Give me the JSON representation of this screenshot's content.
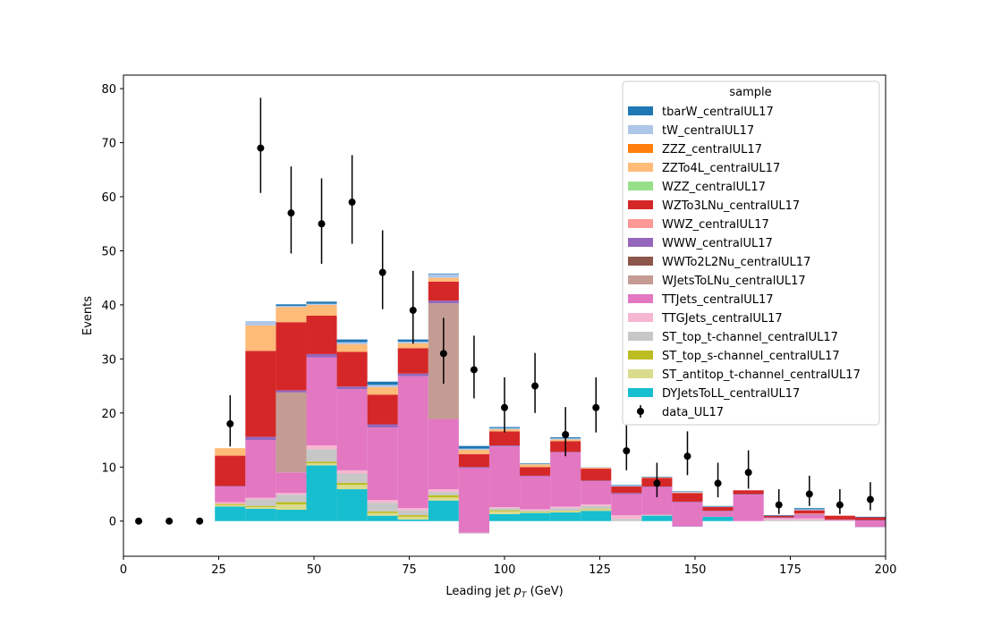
{
  "chart_data": {
    "type": "bar",
    "stacked": true,
    "xlabel": "Leading jet  p_T (GeV)",
    "xlabel_main": "Leading jet",
    "xlabel_p": "p",
    "xlabel_sub": "T",
    "xlabel_unit": "(GeV)",
    "ylabel": "Events",
    "xlim": [
      0,
      200
    ],
    "ylim": [
      -6.5,
      82.5
    ],
    "xticks": [
      0,
      25,
      50,
      75,
      100,
      125,
      150,
      175,
      200
    ],
    "yticks": [
      0,
      10,
      20,
      30,
      40,
      50,
      60,
      70,
      80
    ],
    "bin_edges": [
      0,
      8,
      16,
      24,
      32,
      40,
      48,
      56,
      64,
      72,
      80,
      88,
      96,
      104,
      112,
      120,
      128,
      136,
      144,
      152,
      160,
      168,
      176,
      184,
      192,
      200
    ],
    "legend": {
      "title": "sample",
      "position": "top-right"
    },
    "series": [
      {
        "name": "DYJetsToLL_centralUL17",
        "color": "#17becf",
        "values": [
          0,
          0,
          0,
          2.7,
          2.3,
          2.1,
          10.3,
          5.9,
          1.0,
          0.3,
          3.8,
          -2.3,
          1.3,
          1.5,
          1.6,
          1.9,
          0.0,
          1.0,
          -1.0,
          0.8,
          0.0,
          0.0,
          0.0,
          0.0,
          -1.1
        ]
      },
      {
        "name": "ST_antitop_t-channel_centralUL17",
        "color": "#dbdb8d",
        "values": [
          0,
          0,
          0,
          0.3,
          0.3,
          1.0,
          0.4,
          0.8,
          0.5,
          0.5,
          0.6,
          0,
          0.5,
          0.2,
          0.2,
          0.3,
          0,
          0,
          0,
          0,
          0,
          0,
          0,
          0,
          0
        ]
      },
      {
        "name": "ST_top_s-channel_centralUL17",
        "color": "#bcbd22",
        "values": [
          0,
          0,
          0,
          0.2,
          0.2,
          0.4,
          0.3,
          0.4,
          0.3,
          0.3,
          0.4,
          0,
          0.2,
          0.1,
          0.1,
          0.1,
          0,
          0,
          0,
          0,
          0,
          0,
          0,
          0,
          0
        ]
      },
      {
        "name": "ST_top_t-channel_centralUL17",
        "color": "#c7c7c7",
        "values": [
          0,
          0,
          0,
          0,
          1.2,
          1.4,
          2.3,
          1.7,
          1.6,
          0.9,
          0.6,
          0,
          0.4,
          0.2,
          0.5,
          0.5,
          0.4,
          0.2,
          0,
          0,
          0,
          0.2,
          0.2,
          0,
          0
        ]
      },
      {
        "name": "TTGJets_centralUL17",
        "color": "#f7b6d2",
        "values": [
          0,
          0,
          0,
          0.3,
          0.3,
          0.3,
          0.7,
          0.6,
          0.5,
          0.4,
          0.5,
          0.2,
          0.2,
          0.2,
          0.3,
          0.3,
          0.7,
          0,
          0,
          0,
          0,
          0.3,
          0.3,
          0.2,
          0
        ]
      },
      {
        "name": "TTJets_centralUL17",
        "color": "#e377c2",
        "values": [
          0,
          0,
          0,
          2.9,
          10.7,
          3.8,
          16.3,
          15.0,
          13.4,
          24.4,
          13.0,
          11.9,
          11.2,
          6.1,
          10.0,
          4.3,
          3.9,
          5.1,
          4.5,
          1.0,
          4.9,
          0.1,
          0.6,
          0,
          1.2
        ]
      },
      {
        "name": "WJetsToLNu_centralUL17",
        "color": "#c49c94",
        "values": [
          0,
          0,
          0,
          0,
          0,
          14.8,
          0,
          0,
          0,
          0,
          21.4,
          0,
          0,
          0,
          0,
          0,
          0,
          0,
          0,
          0,
          0,
          0,
          0,
          0,
          0
        ]
      },
      {
        "name": "WWTo2L2Nu_centralUL17",
        "color": "#8c564b",
        "values": [
          0,
          0,
          0,
          0,
          0,
          0,
          0,
          0,
          0,
          0,
          0,
          0,
          0,
          0,
          0,
          0,
          0,
          0,
          0,
          0,
          0,
          0,
          0,
          0,
          0
        ]
      },
      {
        "name": "WWW_centralUL17",
        "color": "#9467bd",
        "values": [
          0,
          0,
          0,
          0.1,
          0.6,
          0.4,
          0.6,
          0.5,
          0.6,
          0.5,
          0.5,
          0.2,
          0.2,
          0.1,
          0.1,
          0.1,
          0.2,
          0.1,
          0.1,
          0.1,
          0.1,
          0.1,
          0.1,
          0.1,
          0.1
        ]
      },
      {
        "name": "WWZ_centralUL17",
        "color": "#ff9896",
        "values": [
          0,
          0,
          0,
          0,
          0,
          0,
          0,
          0,
          0,
          0,
          0,
          0,
          0,
          0,
          0,
          0,
          0,
          0,
          0,
          0,
          0,
          0,
          0.2,
          0,
          0
        ]
      },
      {
        "name": "WZTo3LNu_centralUL17",
        "color": "#d62728",
        "values": [
          0,
          0,
          0,
          5.6,
          15.9,
          12.6,
          7.1,
          6.4,
          5.5,
          4.7,
          3.5,
          2.4,
          2.6,
          1.6,
          2.0,
          2.2,
          1.2,
          1.6,
          1.6,
          0.7,
          0.7,
          0.3,
          0.6,
          0.7,
          0.5
        ]
      },
      {
        "name": "WZZ_centralUL17",
        "color": "#98df8a",
        "values": [
          0,
          0,
          0,
          0,
          0,
          0,
          0,
          0,
          0,
          0,
          0,
          0,
          0,
          0,
          0,
          0,
          0,
          0,
          0,
          0,
          0,
          0,
          0,
          0,
          0
        ]
      },
      {
        "name": "ZZTo4L_centralUL17",
        "color": "#ffbb78",
        "values": [
          0,
          0,
          0,
          1.4,
          4.7,
          2.8,
          2.0,
          1.4,
          1.4,
          0.9,
          0.7,
          0.8,
          0.4,
          0.5,
          0.3,
          0.2,
          0,
          0.1,
          0.1,
          0,
          0,
          0,
          0,
          0,
          0
        ]
      },
      {
        "name": "ZZZ_centralUL17",
        "color": "#ff7f0e",
        "values": [
          0,
          0,
          0,
          0,
          0,
          0,
          0,
          0,
          0,
          0,
          0,
          0,
          0,
          0,
          0,
          0,
          0,
          0,
          0,
          0,
          0,
          0,
          0,
          0,
          0
        ]
      },
      {
        "name": "tW_centralUL17",
        "color": "#aec7e8",
        "values": [
          0,
          0,
          0,
          0,
          0.8,
          0.2,
          0.2,
          0.4,
          0.4,
          0.3,
          0.7,
          0.2,
          0.2,
          0.1,
          0.2,
          0.1,
          0.2,
          0,
          0.1,
          0.1,
          0,
          0,
          0.2,
          0,
          0
        ]
      },
      {
        "name": "tbarW_centralUL17",
        "color": "#1f77b4",
        "values": [
          0,
          0,
          0,
          0,
          0,
          0.3,
          0.4,
          0.5,
          0.6,
          0.4,
          0.1,
          0.5,
          0.2,
          0.1,
          0.2,
          0,
          0.1,
          0.1,
          0.1,
          0.1,
          0,
          0.1,
          0.2,
          0,
          0.1
        ]
      }
    ],
    "data": {
      "name": "data_UL17",
      "x": [
        4,
        12,
        20,
        28,
        36,
        44,
        52,
        60,
        68,
        76,
        84,
        92,
        100,
        108,
        116,
        124,
        132,
        140,
        148,
        156,
        164,
        172,
        180,
        188,
        196
      ],
      "values": [
        0,
        0,
        0,
        18,
        69,
        57,
        55,
        59,
        46,
        39,
        31,
        28,
        21,
        25,
        16,
        21,
        13,
        7,
        12,
        7,
        9,
        3,
        5,
        3,
        4
      ],
      "err_lo": [
        0,
        0,
        0,
        4.2,
        8.3,
        7.5,
        7.4,
        7.7,
        6.8,
        6.2,
        5.6,
        5.3,
        4.6,
        5.0,
        4.0,
        4.6,
        3.6,
        2.6,
        3.5,
        2.6,
        3.0,
        1.7,
        2.2,
        1.7,
        2.0
      ],
      "err_hi": [
        0,
        0,
        0,
        5.3,
        9.3,
        8.6,
        8.4,
        8.7,
        7.8,
        7.3,
        6.6,
        6.3,
        5.6,
        6.1,
        5.1,
        5.6,
        4.7,
        3.8,
        4.6,
        3.8,
        4.1,
        2.9,
        3.4,
        2.9,
        3.2
      ],
      "color": "#000000"
    }
  }
}
